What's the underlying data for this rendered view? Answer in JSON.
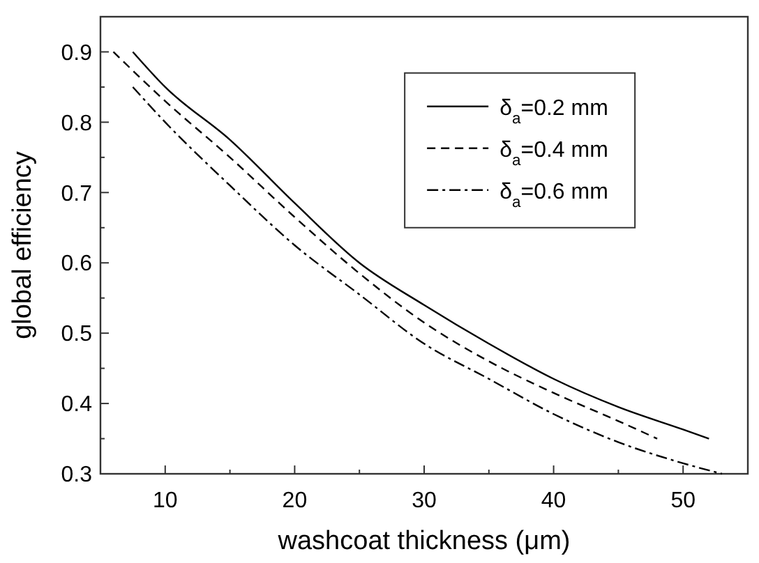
{
  "chart_data": {
    "type": "line",
    "xlabel": "washcoat thickness (μm)",
    "ylabel": "global efficiency",
    "xlim": [
      5,
      55
    ],
    "ylim": [
      0.3,
      0.95
    ],
    "xticks": [
      10,
      {
        "value": 15,
        "label": null
      },
      20,
      {
        "value": 25,
        "label": null
      },
      30,
      {
        "value": 35,
        "label": null
      },
      40,
      {
        "value": 45,
        "label": null
      },
      50
    ],
    "yticks": [
      0.3,
      {
        "value": 0.35,
        "label": null
      },
      0.4,
      {
        "value": 0.45,
        "label": null
      },
      0.5,
      {
        "value": 0.55,
        "label": null
      },
      0.6,
      {
        "value": 0.65,
        "label": null
      },
      0.7,
      {
        "value": 0.75,
        "label": null
      },
      0.8,
      {
        "value": 0.85,
        "label": null
      },
      0.9
    ],
    "legend": "top right",
    "grid": false,
    "series": [
      {
        "name": "δ$_{a}$=0.2 mm",
        "color": "#000000",
        "line_style": "solid",
        "x": [
          7.5,
          10,
          15,
          20,
          25,
          30,
          35,
          40,
          45,
          50,
          52
        ],
        "values": [
          0.9,
          0.85,
          0.775,
          0.685,
          0.6,
          0.54,
          0.485,
          0.435,
          0.395,
          0.363,
          0.35
        ]
      },
      {
        "name": "δ$_{a}$=0.4 mm",
        "color": "#000000",
        "line_style": "dashed",
        "x": [
          6,
          10,
          15,
          20,
          25,
          30,
          35,
          40,
          45,
          48
        ],
        "values": [
          0.9,
          0.83,
          0.75,
          0.665,
          0.585,
          0.515,
          0.46,
          0.415,
          0.375,
          0.35
        ]
      },
      {
        "name": "δ$_{a}$=0.6 mm",
        "color": "#000000",
        "line_style": "dashdot",
        "x": [
          7.5,
          10,
          15,
          20,
          25,
          30,
          35,
          40,
          45,
          50,
          53
        ],
        "values": [
          0.85,
          0.8,
          0.71,
          0.625,
          0.555,
          0.485,
          0.435,
          0.385,
          0.345,
          0.315,
          0.3
        ]
      }
    ]
  }
}
